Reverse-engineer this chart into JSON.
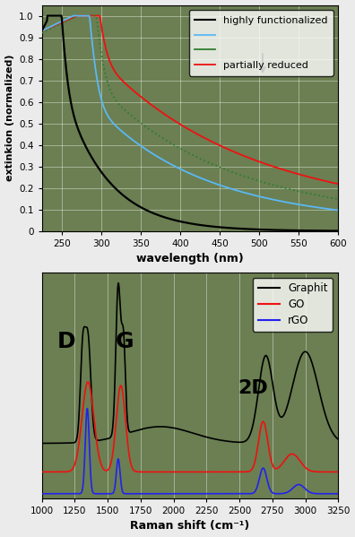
{
  "top_chart": {
    "xlabel": "wavelength (nm)",
    "ylabel": "extinkion (normalized)",
    "xlim": [
      225,
      600
    ],
    "ylim": [
      0,
      1.05
    ],
    "yticks": [
      0,
      0.1,
      0.2,
      0.3,
      0.4,
      0.5,
      0.6,
      0.7,
      0.8,
      0.9,
      1.0
    ],
    "xticks": [
      250,
      300,
      350,
      400,
      450,
      500,
      550,
      600
    ],
    "bg_color": "#6B7F52",
    "legend": {
      "label1": "highly functionalized",
      "label2": "",
      "label3": "",
      "label4": "partially reduced"
    },
    "colors": {
      "black": "#000000",
      "blue": "#5BB8F5",
      "green": "#2E7D2E",
      "red": "#EE1111"
    }
  },
  "bottom_chart": {
    "xlabel": "Raman shift (cm⁻¹)",
    "xlim": [
      1000,
      3250
    ],
    "ylim": [
      0,
      1.05
    ],
    "xticks": [
      1000,
      1250,
      1500,
      1750,
      2000,
      2250,
      2500,
      2750,
      3000,
      3250
    ],
    "bg_color": "#6B7F52",
    "legend": {
      "label1": "Graphit",
      "label2": "GO",
      "label3": "rGO"
    },
    "colors": {
      "black": "#000000",
      "red": "#EE1111",
      "blue": "#2222EE"
    },
    "annotations": {
      "D": [
        1115,
        0.68
      ],
      "G": [
        1560,
        0.68
      ],
      "2D": [
        2490,
        0.47
      ]
    }
  }
}
